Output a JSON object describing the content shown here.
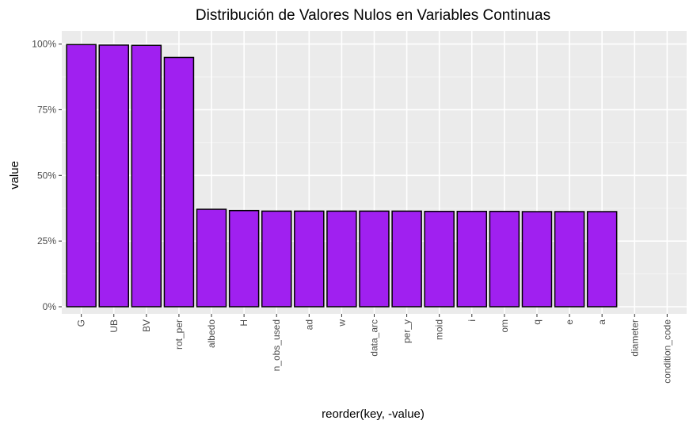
{
  "colors": {
    "panel_background": "#ebebeb",
    "grid_major": "#ffffff",
    "grid_minor": "#f5f5f5",
    "bar_fill": "#a020f0",
    "bar_outline": "#000000",
    "tick_text": "#4d4d4d",
    "tick_mark": "#333333"
  },
  "chart_data": {
    "type": "bar",
    "title": "Distribución de Valores Nulos en Variables Continuas",
    "xlabel": "reorder(key, -value)",
    "ylabel": "value",
    "ylim": [
      0,
      1.05
    ],
    "y_ticks": [
      {
        "value": 0,
        "label": "0%"
      },
      {
        "value": 0.25,
        "label": "25%"
      },
      {
        "value": 0.5,
        "label": "50%"
      },
      {
        "value": 0.75,
        "label": "75%"
      },
      {
        "value": 1,
        "label": "100%"
      }
    ],
    "grid": true,
    "categories": [
      "G",
      "UB",
      "BV",
      "rot_per",
      "albedo",
      "H",
      "n_obs_used",
      "ad",
      "w",
      "data_arc",
      "per_y",
      "moid",
      "i",
      "om",
      "q",
      "e",
      "a",
      "diameter",
      "condition_code"
    ],
    "values": [
      0.998,
      0.996,
      0.995,
      0.949,
      0.371,
      0.366,
      0.364,
      0.364,
      0.364,
      0.364,
      0.364,
      0.363,
      0.363,
      0.363,
      0.362,
      0.362,
      0.362,
      0.0,
      0.0
    ]
  }
}
